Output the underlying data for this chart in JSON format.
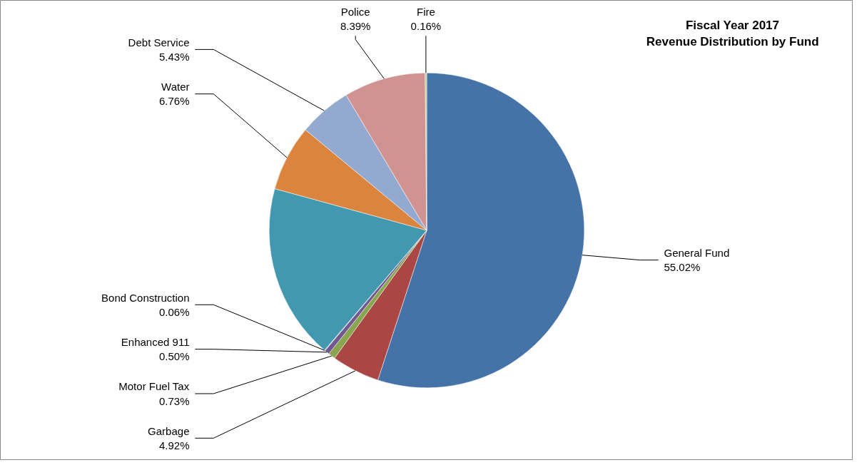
{
  "chart_data": {
    "type": "pie",
    "title": "Fiscal Year 2017\nRevenue Distribution by Fund",
    "categories": [
      "General Fund",
      "Garbage",
      "Motor Fuel Tax",
      "Enhanced 911",
      "Bond Construction",
      null,
      "Water",
      "Debt Service",
      "Police",
      "Fire"
    ],
    "values": [
      55.02,
      4.92,
      0.73,
      0.5,
      0.06,
      18.03,
      6.76,
      5.43,
      8.39,
      0.16
    ],
    "value_labels": [
      "55.02%",
      "4.92%",
      "0.73%",
      "0.50%",
      "0.06%",
      null,
      "6.76%",
      "5.43%",
      "8.39%",
      "0.16%"
    ],
    "colors": [
      "#4572a7",
      "#aa4643",
      "#89a54e",
      "#71588f",
      "#a99bbd",
      "#4198af",
      "#db843d",
      "#93a9cf",
      "#d19392",
      "#b9cd96"
    ]
  }
}
